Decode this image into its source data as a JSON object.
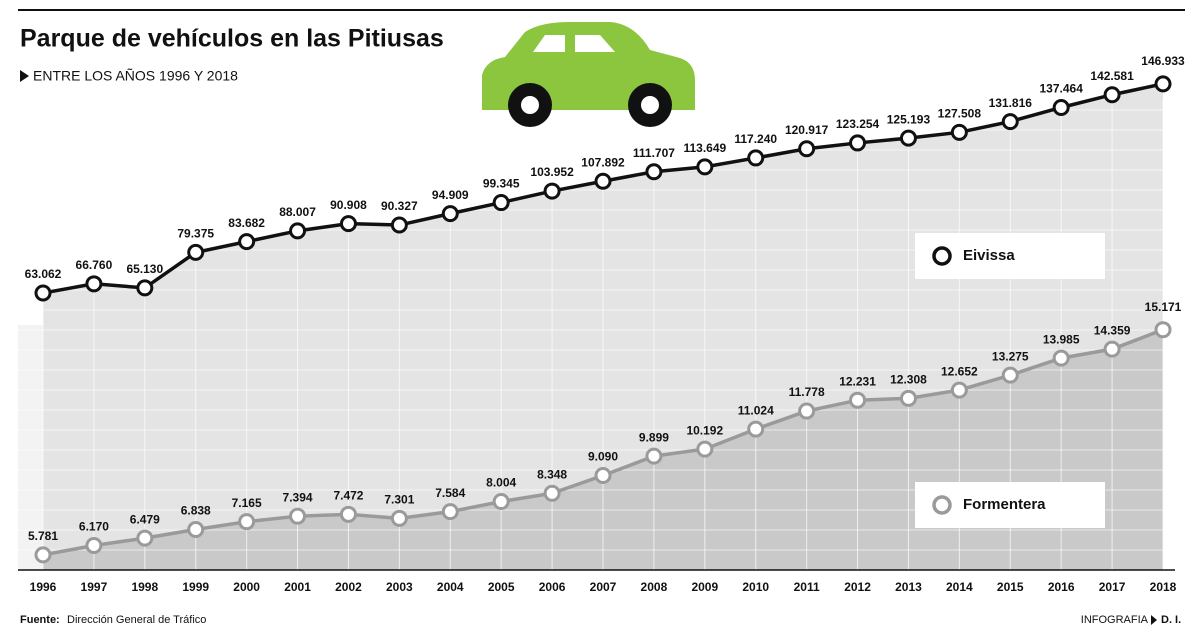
{
  "chart_data": {
    "type": "line",
    "title": "Parque de vehículos en las Pitiusas",
    "subtitle": "ENTRE LOS AÑOS 1996 Y 2018",
    "categories": [
      "1996",
      "1997",
      "1998",
      "1999",
      "2000",
      "2001",
      "2002",
      "2003",
      "2004",
      "2005",
      "2006",
      "2007",
      "2008",
      "2009",
      "2010",
      "2011",
      "2012",
      "2013",
      "2014",
      "2015",
      "2016",
      "2017",
      "2018"
    ],
    "series": [
      {
        "name": "Eivissa",
        "color": "#111111",
        "values": [
          63062,
          66760,
          65130,
          79375,
          83682,
          88007,
          90908,
          90327,
          94909,
          99345,
          103952,
          107892,
          111707,
          113649,
          117240,
          120917,
          123254,
          125193,
          127508,
          131816,
          137464,
          142581,
          146933
        ],
        "value_labels": [
          "63.062",
          "66.760",
          "65.130",
          "79.375",
          "83.682",
          "88.007",
          "90.908",
          "90.327",
          "94.909",
          "99.345",
          "103.952",
          "107.892",
          "111.707",
          "113.649",
          "117.240",
          "120.917",
          "123.254",
          "125.193",
          "127.508",
          "131.816",
          "137.464",
          "142.581",
          "146.933"
        ]
      },
      {
        "name": "Formentera",
        "color": "#9a9a9a",
        "axis": "y2",
        "values": [
          5781,
          6170,
          6479,
          6838,
          7165,
          7394,
          7472,
          7301,
          7584,
          8004,
          8348,
          9090,
          9899,
          10192,
          11024,
          11778,
          12231,
          12308,
          12652,
          13275,
          13985,
          14359,
          15171
        ],
        "value_labels": [
          "5.781",
          "6.170",
          "6.479",
          "6.838",
          "7.165",
          "7.394",
          "7.472",
          "7.301",
          "7.584",
          "8.004",
          "8.348",
          "9.090",
          "9.899",
          "10.192",
          "11.024",
          "11.778",
          "12.231",
          "12.308",
          "12.652",
          "13.275",
          "13.985",
          "14.359",
          "15.171"
        ]
      }
    ],
    "ylim": [
      -48000,
      152500
    ],
    "y2lim": [
      5150,
      26000
    ],
    "source_label": "Fuente:",
    "source": "Dirección General de Tráfico",
    "credit": "INFOGRAFIA",
    "author": "D. I."
  }
}
